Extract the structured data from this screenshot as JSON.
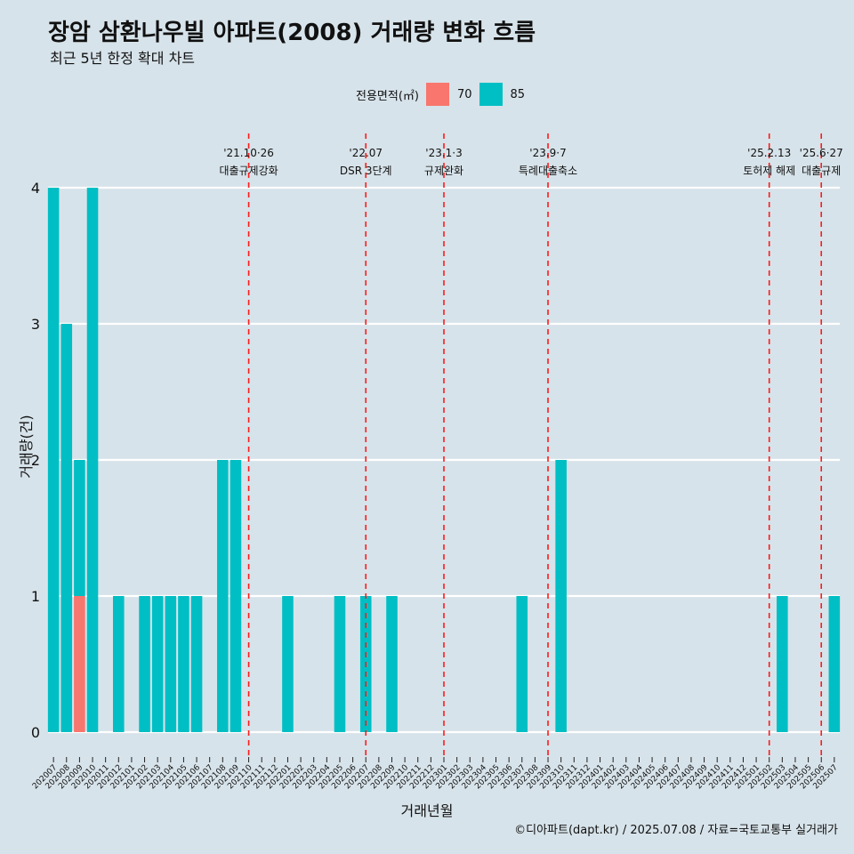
{
  "chart_data": {
    "type": "bar",
    "title": "장암 삼환나우빌 아파트(2008) 거래량 변화 흐름",
    "subtitle": "최근 5년 한정 확대 차트",
    "xlabel": "거래년월",
    "ylabel": "거래량(건)",
    "caption": "©디아파트(dapt.kr) / 2025.07.08 / 자료=국토교통부 실거래가",
    "legend": {
      "title": "전용면적(㎡)",
      "placement": "top",
      "items": [
        {
          "name": "70",
          "color": "#f8766d"
        },
        {
          "name": "85",
          "color": "#00bfc4"
        }
      ]
    },
    "ylim": [
      0,
      4
    ],
    "y_ticks": [
      "0",
      "1",
      "2",
      "3",
      "4"
    ],
    "grid": true,
    "categories": [
      "202007",
      "202008",
      "202009",
      "202010",
      "202011",
      "202012",
      "202101",
      "202102",
      "202103",
      "202104",
      "202105",
      "202106",
      "202107",
      "202108",
      "202109",
      "202110",
      "202111",
      "202112",
      "202201",
      "202202",
      "202203",
      "202204",
      "202205",
      "202206",
      "202207",
      "202208",
      "202209",
      "202210",
      "202211",
      "202212",
      "202301",
      "202302",
      "202303",
      "202304",
      "202305",
      "202306",
      "202307",
      "202308",
      "202309",
      "202310",
      "202311",
      "202312",
      "202401",
      "202402",
      "202403",
      "202404",
      "202405",
      "202406",
      "202407",
      "202408",
      "202409",
      "202410",
      "202411",
      "202412",
      "202501",
      "202502",
      "202503",
      "202504",
      "202505",
      "202506",
      "202507"
    ],
    "series": [
      {
        "name": "70",
        "color": "#f8766d",
        "values": [
          0,
          0,
          1,
          0,
          0,
          0,
          0,
          0,
          0,
          0,
          0,
          0,
          0,
          0,
          0,
          0,
          0,
          0,
          0,
          0,
          0,
          0,
          0,
          0,
          0,
          0,
          0,
          0,
          0,
          0,
          0,
          0,
          0,
          0,
          0,
          0,
          0,
          0,
          0,
          0,
          0,
          0,
          0,
          0,
          0,
          0,
          0,
          0,
          0,
          0,
          0,
          0,
          0,
          0,
          0,
          0,
          0,
          0,
          0,
          0,
          0
        ]
      },
      {
        "name": "85",
        "color": "#00bfc4",
        "values": [
          4,
          3,
          1,
          4,
          0,
          1,
          0,
          1,
          1,
          1,
          1,
          1,
          0,
          2,
          2,
          0,
          0,
          0,
          1,
          0,
          0,
          0,
          1,
          0,
          1,
          0,
          1,
          0,
          0,
          0,
          0,
          0,
          0,
          0,
          0,
          0,
          1,
          0,
          0,
          2,
          0,
          0,
          0,
          0,
          0,
          0,
          0,
          0,
          0,
          0,
          0,
          0,
          0,
          0,
          0,
          0,
          1,
          0,
          0,
          0,
          1
        ]
      }
    ],
    "annotations": [
      {
        "date": "202110",
        "label1": "'21.10·26",
        "label2": "대출규제강화"
      },
      {
        "date": "202207",
        "label1": "'22.07",
        "label2": "DSR 3단계"
      },
      {
        "date": "202301",
        "label1": "'23.1·3",
        "label2": "규제완화"
      },
      {
        "date": "202309",
        "label1": "'23.9·7",
        "label2": "특례대출축소"
      },
      {
        "date": "202502",
        "label1": "'25.2.13",
        "label2": "토허제 해제"
      },
      {
        "date": "202506",
        "label1": "'25.6·27",
        "label2": "대출규제"
      }
    ]
  }
}
